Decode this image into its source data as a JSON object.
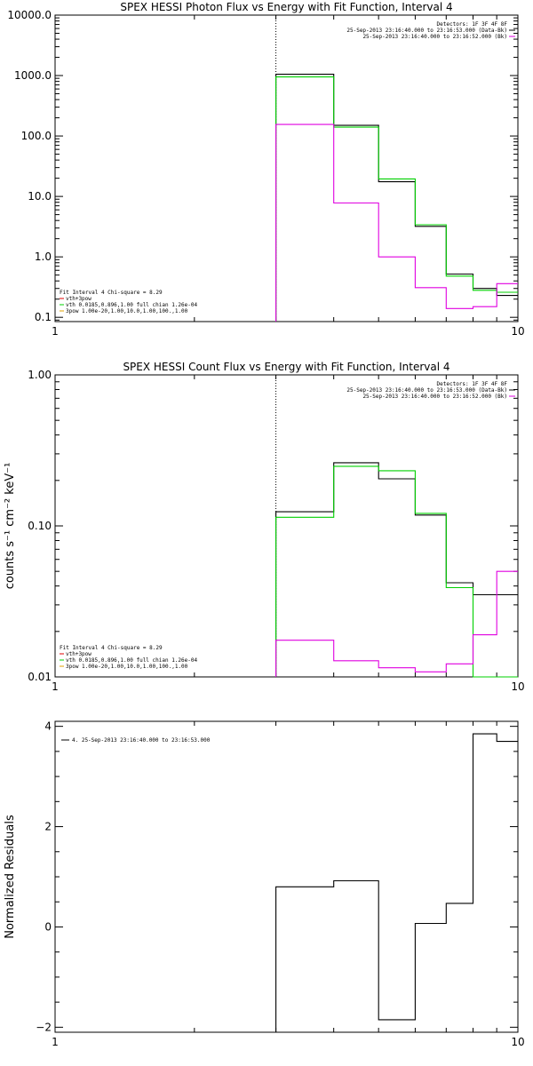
{
  "chart_data": [
    {
      "type": "line",
      "title": "SPEX HESSI Photon Flux vs Energy with Fit Function, Interval 4",
      "xscale": "log",
      "yscale": "log",
      "xlim": [
        1,
        10
      ],
      "ylim": [
        0.085,
        10000
      ],
      "xticks": [
        {
          "v": 1,
          "label": "1"
        },
        {
          "v": 10,
          "label": "10"
        }
      ],
      "yticks": [
        {
          "v": 10000,
          "label": "10000.0"
        },
        {
          "v": 1000,
          "label": "1000.0"
        },
        {
          "v": 100,
          "label": "100.0"
        },
        {
          "v": 10,
          "label": "10.0"
        },
        {
          "v": 1,
          "label": "1.0"
        },
        {
          "v": 0.1,
          "label": "0.1"
        }
      ],
      "vline": {
        "x": 3.0,
        "style": "dotted"
      },
      "legend_topright": [
        "Detectors: 1F 3F 4F 8F",
        "25-Sep-2013 23:16:40.000 to 23:16:53.000 (Data-Bk)",
        "25-Sep-2013 23:16:40.000 to 23:16:52.000 (Bk)"
      ],
      "legend_topright_colors": [
        "",
        "#000000",
        "#e000e0"
      ],
      "legend_bottomleft": [
        "Fit Interval  4   Chi-square = 8.29",
        "vth+3pow",
        "vth 0.0185,0.896,1.00  full chian 1.26e-04",
        "3pow 1.00e-20,1.00,10.0,1.00,100.,1.00"
      ],
      "legend_bottomleft_colors": [
        "",
        "#e00000",
        "#00d000",
        "#e0a000"
      ],
      "edges": [
        3,
        4,
        5,
        6,
        7,
        8,
        9,
        10
      ],
      "series": [
        {
          "color": "#000000",
          "values": [
            1050,
            150,
            17.5,
            3.2,
            0.52,
            0.3,
            0.23
          ]
        },
        {
          "color": "#00d000",
          "values": [
            950,
            140,
            19.5,
            3.4,
            0.48,
            0.28,
            0.26
          ]
        },
        {
          "color": "#e000e0",
          "values": [
            155,
            7.8,
            1.0,
            0.31,
            0.14,
            0.15,
            0.36
          ]
        }
      ]
    },
    {
      "type": "line",
      "title": "SPEX HESSI Count Flux vs Energy with Fit Function, Interval 4",
      "ylabel": "counts s⁻¹ cm⁻² keV⁻¹",
      "xscale": "log",
      "yscale": "log",
      "xlim": [
        1,
        10
      ],
      "ylim": [
        0.01,
        1.0
      ],
      "xticks": [
        {
          "v": 1,
          "label": "1"
        },
        {
          "v": 10,
          "label": "10"
        }
      ],
      "yticks": [
        {
          "v": 1.0,
          "label": "1.00"
        },
        {
          "v": 0.1,
          "label": "0.10"
        },
        {
          "v": 0.01,
          "label": "0.01"
        }
      ],
      "vline": {
        "x": 3.0,
        "style": "dotted"
      },
      "legend_topright": [
        "Detectors: 1F 3F 4F 8F",
        "25-Sep-2013 23:16:40.000 to 23:16:53.000 (Data-Bk)",
        "25-Sep-2013 23:16:40.000 to 23:16:52.000 (Bk)"
      ],
      "legend_topright_colors": [
        "",
        "#000000",
        "#e000e0"
      ],
      "legend_bottomleft": [
        "Fit Interval  4   Chi-square = 8.29",
        "vth+3pow",
        "vth 0.0185,0.896,1.00  full chian 1.26e-04",
        "3pow 1.00e-20,1.00,10.0,1.00,100.,1.00"
      ],
      "legend_bottomleft_colors": [
        "",
        "#e00000",
        "#00d000",
        "#e0a000"
      ],
      "edges": [
        3,
        4,
        5,
        6,
        7,
        8,
        9,
        10
      ],
      "series": [
        {
          "color": "#000000",
          "values": [
            0.124,
            0.262,
            0.205,
            0.118,
            0.042,
            0.035,
            0.035
          ]
        },
        {
          "color": "#00d000",
          "values": [
            0.114,
            0.248,
            0.232,
            0.121,
            0.039,
            0.0085,
            0.0085
          ]
        },
        {
          "color": "#e000e0",
          "values": [
            0.0175,
            0.0128,
            0.0115,
            0.0108,
            0.0122,
            0.019,
            0.05
          ]
        }
      ]
    },
    {
      "type": "line",
      "ylabel": "Normalized Residuals",
      "xscale": "log",
      "yscale": "linear",
      "xlim": [
        1,
        10
      ],
      "ylim": [
        -2.1,
        4.1
      ],
      "xticks": [
        {
          "v": 1,
          "label": "1"
        },
        {
          "v": 10,
          "label": "10"
        }
      ],
      "yticks": [
        {
          "v": 4,
          "label": "4"
        },
        {
          "v": 2,
          "label": "2"
        },
        {
          "v": 0,
          "label": "0"
        },
        {
          "v": -2,
          "label": "−2"
        }
      ],
      "legend_topleft": [
        "4. 25-Sep-2013 23:16:40.000 to 23:16:53.000"
      ],
      "edges": [
        3,
        4,
        5,
        6,
        7,
        8,
        9,
        10
      ],
      "series": [
        {
          "color": "#000000",
          "values": [
            0.8,
            0.92,
            -1.85,
            0.07,
            0.47,
            3.85,
            3.7
          ]
        }
      ]
    }
  ]
}
